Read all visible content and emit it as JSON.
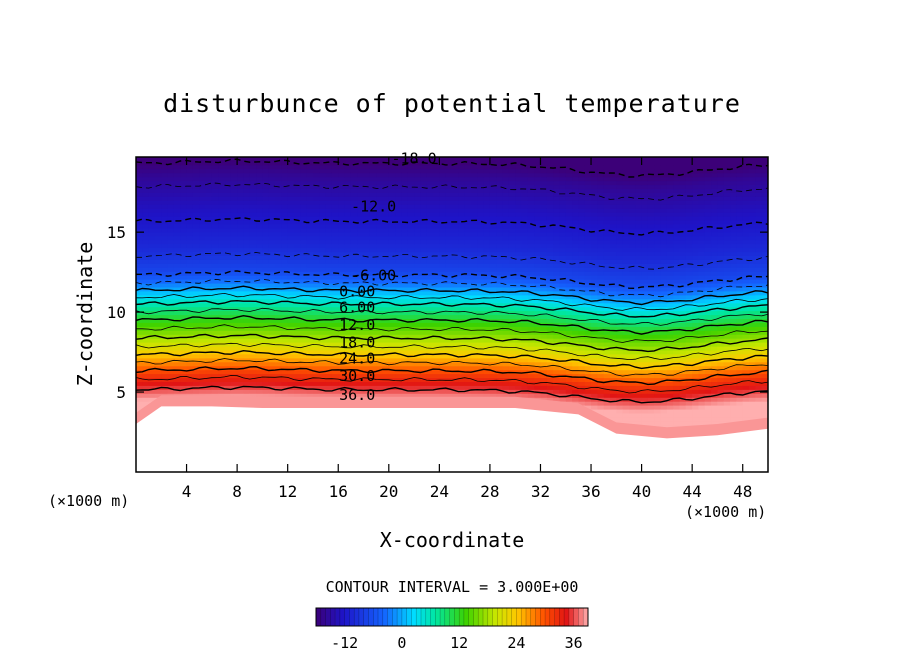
{
  "chart_data": {
    "type": "heatmap",
    "title": "disturbunce of potential temperature",
    "xlabel": "X-coordinate",
    "ylabel": "Z-coordinate",
    "x_unit": "(×1000 m)",
    "y_unit": "(×1000 m)",
    "xlim": [
      0,
      50
    ],
    "ylim": [
      0,
      19.7
    ],
    "x_ticks": [
      4,
      8,
      12,
      16,
      20,
      24,
      28,
      32,
      36,
      40,
      44,
      48
    ],
    "y_ticks": [
      5,
      10,
      15
    ],
    "contour_interval_text": "CONTOUR INTERVAL = 3.000E+00",
    "contour_labels": [
      {
        "text": "-18.0",
        "x": 22,
        "y": 19.6
      },
      {
        "text": "-12.0",
        "x": 18.8,
        "y": 16.6
      },
      {
        "text": "-6.00",
        "x": 18.8,
        "y": 12.3
      },
      {
        "text": "0.00",
        "x": 17.5,
        "y": 11.3
      },
      {
        "text": "6.00",
        "x": 17.5,
        "y": 10.3
      },
      {
        "text": "12.0",
        "x": 17.5,
        "y": 9.2
      },
      {
        "text": "18.0",
        "x": 17.5,
        "y": 8.1
      },
      {
        "text": "24.0",
        "x": 17.5,
        "y": 7.1
      },
      {
        "text": "30.0",
        "x": 17.5,
        "y": 6.0
      },
      {
        "text": "36.0",
        "x": 17.5,
        "y": 4.8
      }
    ],
    "levels": {
      "min": -18,
      "max": 39,
      "step": 3,
      "profile_z": [
        4.5,
        6.0,
        7.0,
        8.0,
        9.5,
        10.5,
        11.2,
        11.8,
        12.5,
        14.0,
        16.5,
        18.5,
        19.7
      ],
      "profile_value": [
        39,
        32,
        26,
        20,
        12,
        6,
        1,
        -3,
        -7,
        -10,
        -13,
        -16,
        -19
      ]
    },
    "lower_boundary": [
      {
        "x": 0,
        "z": 3.0
      },
      {
        "x": 2,
        "z": 4.1
      },
      {
        "x": 6,
        "z": 4.1
      },
      {
        "x": 10,
        "z": 4.0
      },
      {
        "x": 16,
        "z": 4.0
      },
      {
        "x": 24,
        "z": 4.0
      },
      {
        "x": 30,
        "z": 4.0
      },
      {
        "x": 35,
        "z": 3.6
      },
      {
        "x": 38,
        "z": 2.4
      },
      {
        "x": 42,
        "z": 2.1
      },
      {
        "x": 46,
        "z": 2.3
      },
      {
        "x": 50,
        "z": 2.7
      }
    ],
    "colorbar": {
      "tick_labels": [
        "-12",
        "0",
        "12",
        "24",
        "36"
      ],
      "tick_values": [
        -12,
        0,
        12,
        24,
        36
      ]
    }
  }
}
